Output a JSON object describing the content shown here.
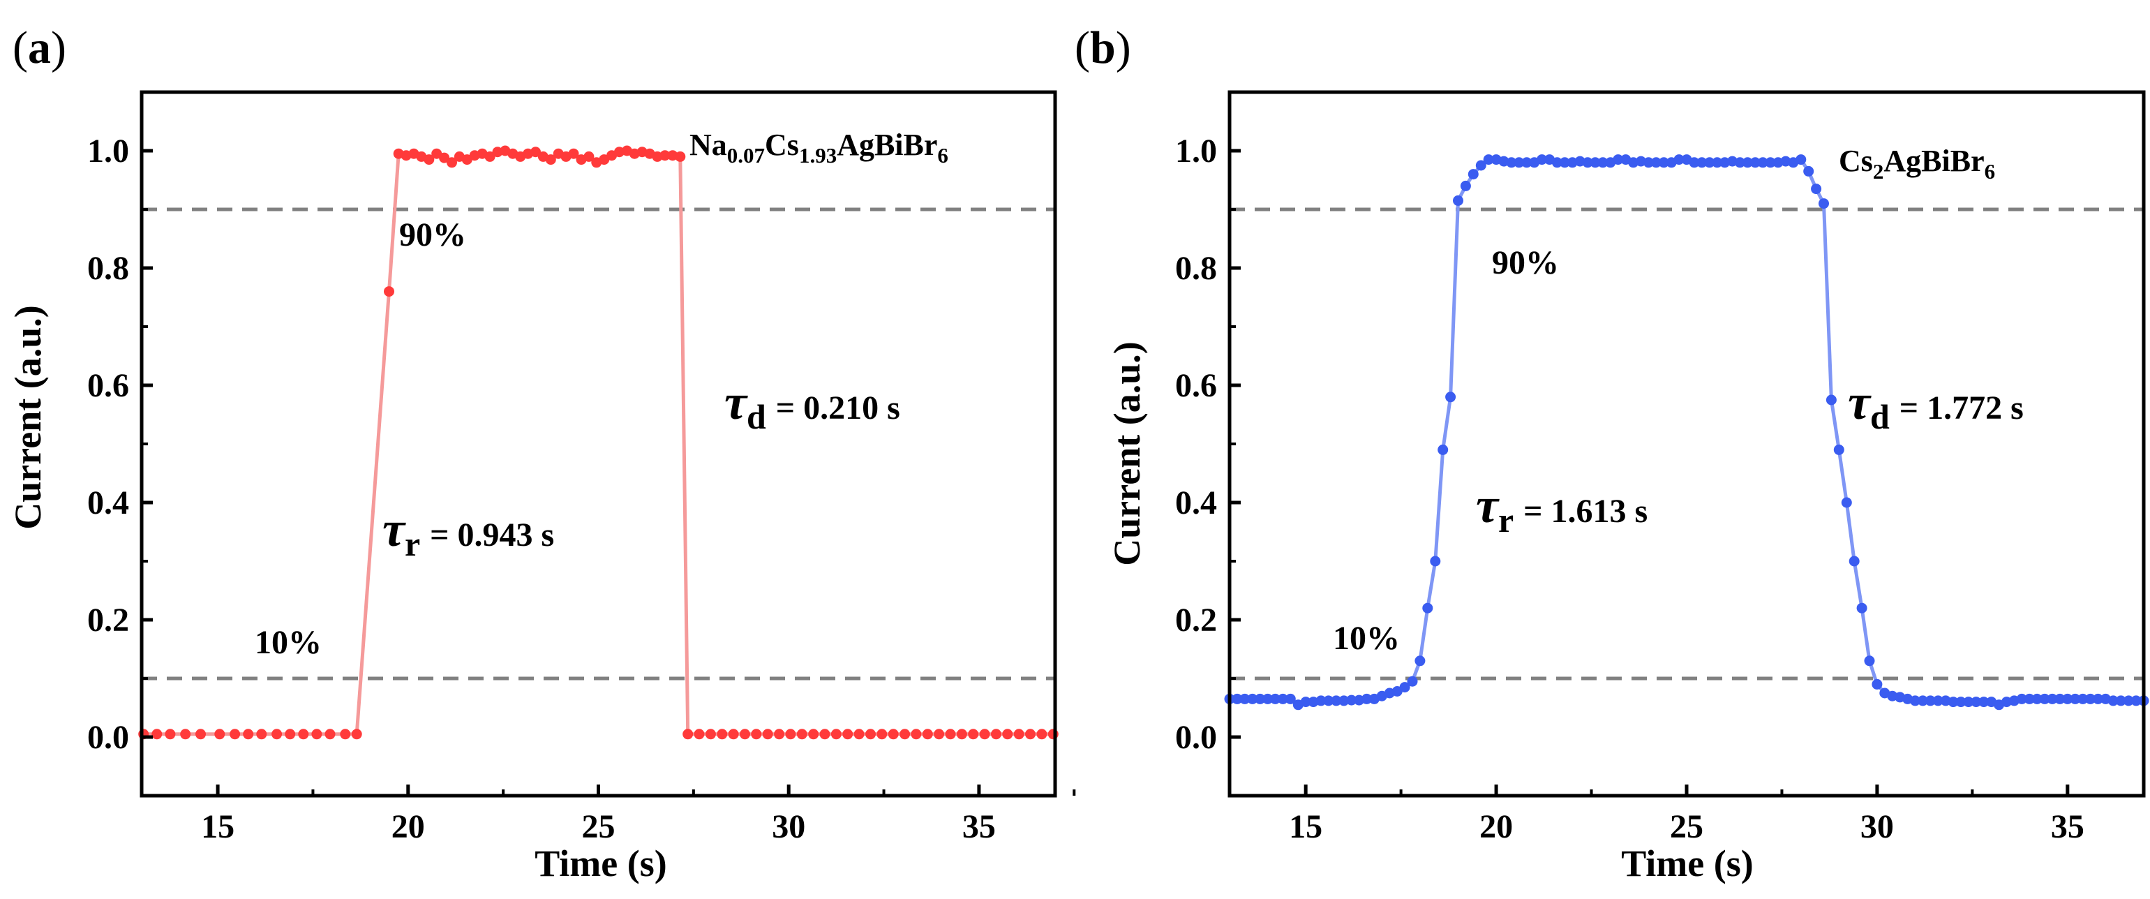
{
  "chart_data": [
    {
      "panel_label": "a",
      "type": "line",
      "xlabel": "Time (s)",
      "ylabel": "Current (a.u.)",
      "xlim": [
        13,
        37
      ],
      "ylim": [
        -0.1,
        1.1
      ],
      "xticks": [
        "15",
        "20",
        "25",
        "30",
        "35"
      ],
      "yticks": [
        "0.0",
        "0.2",
        "0.4",
        "0.6",
        "0.8",
        "1.0"
      ],
      "grid": false,
      "reference_lines": [
        0.1,
        0.9
      ],
      "color": "#ff3a3a",
      "line_color": "#f59a9a",
      "material": {
        "base": "Na",
        "sub1": "0.07",
        "mid": "Cs",
        "sub2": "1.93",
        "tail": "AgBiBr",
        "sub3": "6"
      },
      "label_90": "90%",
      "label_10": "10%",
      "tau_rise": {
        "symbol": "τ",
        "subscript": "r",
        "value": "= 0.943 s"
      },
      "tau_decay": {
        "symbol": "τ",
        "subscript": "d",
        "value": "= 0.210 s"
      },
      "series": [
        {
          "name": "Na0.07Cs1.93AgBiBr6",
          "x": [
            13.05,
            13.4,
            13.75,
            14.15,
            14.55,
            15.05,
            15.45,
            15.8,
            16.15,
            16.55,
            16.9,
            17.25,
            17.6,
            17.95,
            18.35,
            18.65,
            19.5,
            19.75,
            19.95,
            20.15,
            20.35,
            20.55,
            20.75,
            20.95,
            21.15,
            21.35,
            21.55,
            21.75,
            21.95,
            22.15,
            22.35,
            22.55,
            22.75,
            22.95,
            23.15,
            23.35,
            23.55,
            23.75,
            23.95,
            24.15,
            24.35,
            24.55,
            24.75,
            24.95,
            25.15,
            25.35,
            25.55,
            25.75,
            25.95,
            26.15,
            26.35,
            26.55,
            26.75,
            26.95,
            27.15,
            27.35,
            27.65,
            27.95,
            28.25,
            28.55,
            28.85,
            29.15,
            29.45,
            29.75,
            30.05,
            30.35,
            30.65,
            30.95,
            31.25,
            31.55,
            31.85,
            32.15,
            32.45,
            32.75,
            33.05,
            33.35,
            33.65,
            33.95,
            34.25,
            34.55,
            34.85,
            35.15,
            35.45,
            35.75,
            36.05,
            36.35,
            36.65,
            36.95
          ],
          "y": [
            0.005,
            0.005,
            0.005,
            0.005,
            0.005,
            0.005,
            0.005,
            0.005,
            0.005,
            0.005,
            0.005,
            0.005,
            0.005,
            0.005,
            0.005,
            0.005,
            0.76,
            0.995,
            0.992,
            0.995,
            0.99,
            0.985,
            0.995,
            0.988,
            0.98,
            0.99,
            0.985,
            0.992,
            0.995,
            0.99,
            0.998,
            1.0,
            0.995,
            0.99,
            0.995,
            0.998,
            0.99,
            0.985,
            0.995,
            0.99,
            0.995,
            0.985,
            0.99,
            0.98,
            0.985,
            0.992,
            0.998,
            1.0,
            0.995,
            0.998,
            0.995,
            0.99,
            0.992,
            0.992,
            0.99,
            0.005,
            0.005,
            0.005,
            0.005,
            0.005,
            0.005,
            0.005,
            0.005,
            0.005,
            0.005,
            0.005,
            0.005,
            0.005,
            0.005,
            0.005,
            0.005,
            0.005,
            0.005,
            0.005,
            0.005,
            0.005,
            0.005,
            0.005,
            0.005,
            0.005,
            0.005,
            0.005,
            0.005,
            0.005,
            0.005,
            0.005,
            0.005,
            0.005
          ]
        }
      ]
    },
    {
      "panel_label": "b",
      "type": "line",
      "xlabel": "Time (s)",
      "ylabel": "Current (a.u.)",
      "xlim": [
        13,
        37
      ],
      "ylim": [
        -0.1,
        1.1
      ],
      "xticks": [
        "15",
        "20",
        "25",
        "30",
        "35"
      ],
      "yticks": [
        "0.0",
        "0.2",
        "0.4",
        "0.6",
        "0.8",
        "1.0"
      ],
      "grid": false,
      "reference_lines": [
        0.1,
        0.9
      ],
      "color": "#3a5cf0",
      "line_color": "#7f96f5",
      "material": {
        "base": "Cs",
        "sub1": "2",
        "tail": "AgBiBr",
        "sub3": "6"
      },
      "label_90": "90%",
      "label_10": "10%",
      "tau_rise": {
        "symbol": "τ",
        "subscript": "r",
        "value": "= 1.613 s"
      },
      "tau_decay": {
        "symbol": "τ",
        "subscript": "d",
        "value": "= 1.772 s"
      },
      "series": [
        {
          "name": "Cs2AgBiBr6",
          "x": [
            13.0,
            13.2,
            13.4,
            13.6,
            13.8,
            14.0,
            14.2,
            14.4,
            14.6,
            14.8,
            15.0,
            15.2,
            15.4,
            15.6,
            15.8,
            16.0,
            16.2,
            16.4,
            16.6,
            16.8,
            17.0,
            17.2,
            17.4,
            17.6,
            17.8,
            18.0,
            18.2,
            18.4,
            18.6,
            18.8,
            19.0,
            19.2,
            19.4,
            19.6,
            19.8,
            20.0,
            20.2,
            20.4,
            20.6,
            20.8,
            21.0,
            21.2,
            21.4,
            21.6,
            21.8,
            22.0,
            22.2,
            22.4,
            22.6,
            22.8,
            23.0,
            23.2,
            23.4,
            23.6,
            23.8,
            24.0,
            24.2,
            24.4,
            24.6,
            24.8,
            25.0,
            25.2,
            25.4,
            25.6,
            25.8,
            26.0,
            26.2,
            26.4,
            26.6,
            26.8,
            27.0,
            27.2,
            27.4,
            27.6,
            27.8,
            28.0,
            28.2,
            28.4,
            28.6,
            28.8,
            29.0,
            29.2,
            29.4,
            29.6,
            29.8,
            30.0,
            30.2,
            30.4,
            30.6,
            30.8,
            31.0,
            31.2,
            31.4,
            31.6,
            31.8,
            32.0,
            32.2,
            32.4,
            32.6,
            32.8,
            33.0,
            33.2,
            33.4,
            33.6,
            33.8,
            34.0,
            34.2,
            34.4,
            34.6,
            34.8,
            35.0,
            35.2,
            35.4,
            35.6,
            35.8,
            36.0,
            36.2,
            36.4,
            36.6,
            36.8,
            37.0
          ],
          "y": [
            0.065,
            0.065,
            0.065,
            0.065,
            0.065,
            0.065,
            0.065,
            0.065,
            0.065,
            0.055,
            0.06,
            0.06,
            0.062,
            0.062,
            0.062,
            0.062,
            0.063,
            0.063,
            0.065,
            0.065,
            0.07,
            0.075,
            0.078,
            0.085,
            0.095,
            0.13,
            0.22,
            0.3,
            0.49,
            0.58,
            0.915,
            0.94,
            0.96,
            0.975,
            0.985,
            0.985,
            0.982,
            0.98,
            0.98,
            0.98,
            0.98,
            0.985,
            0.985,
            0.98,
            0.98,
            0.98,
            0.982,
            0.98,
            0.98,
            0.98,
            0.98,
            0.985,
            0.985,
            0.98,
            0.982,
            0.98,
            0.98,
            0.98,
            0.98,
            0.985,
            0.985,
            0.98,
            0.98,
            0.98,
            0.98,
            0.98,
            0.982,
            0.98,
            0.98,
            0.98,
            0.98,
            0.98,
            0.98,
            0.982,
            0.98,
            0.985,
            0.965,
            0.935,
            0.91,
            0.575,
            0.49,
            0.4,
            0.3,
            0.22,
            0.13,
            0.09,
            0.075,
            0.07,
            0.068,
            0.065,
            0.062,
            0.062,
            0.062,
            0.062,
            0.062,
            0.06,
            0.06,
            0.06,
            0.06,
            0.06,
            0.06,
            0.055,
            0.06,
            0.062,
            0.065,
            0.065,
            0.065,
            0.065,
            0.065,
            0.065,
            0.065,
            0.065,
            0.065,
            0.065,
            0.065,
            0.065,
            0.062,
            0.062,
            0.062,
            0.062,
            0.062
          ]
        }
      ]
    }
  ]
}
